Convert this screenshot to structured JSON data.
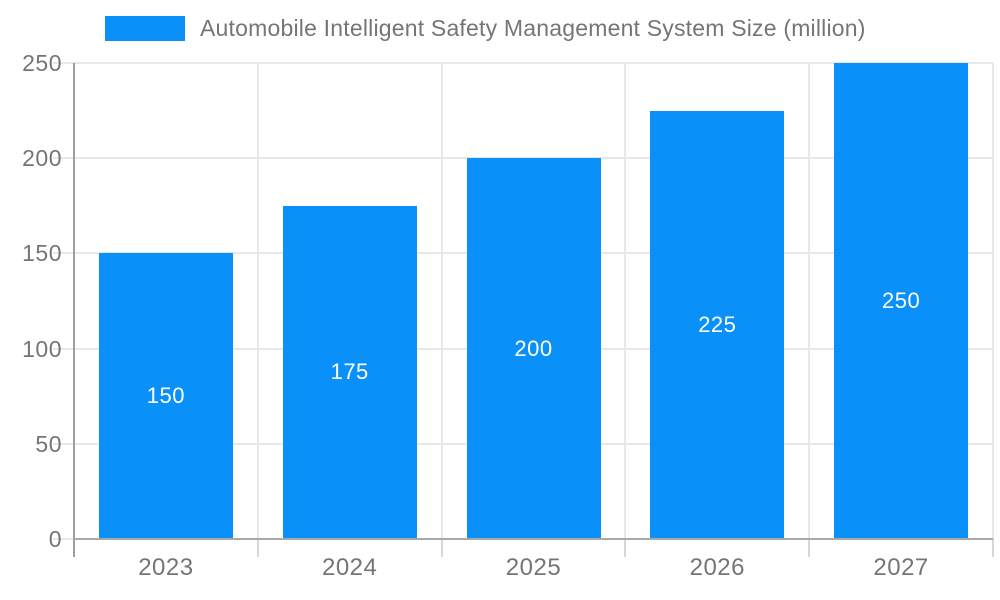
{
  "legend": {
    "label": "Automobile Intelligent Safety Management System Size (million)"
  },
  "chart_data": {
    "type": "bar",
    "title": "",
    "xlabel": "",
    "ylabel": "",
    "categories": [
      "2023",
      "2024",
      "2025",
      "2026",
      "2027"
    ],
    "values": [
      150,
      175,
      200,
      225,
      250
    ],
    "series_name": "Automobile Intelligent Safety Management System Size (million)",
    "ylim": [
      0,
      250
    ],
    "yticks": [
      0,
      50,
      100,
      150,
      200,
      250
    ],
    "grid": true,
    "legend_position": "top-left",
    "bar_color": "#0a90f9",
    "data_label_color": "#ffffff",
    "axis_text_color": "#757575",
    "gridline_color": "#e8e8e8"
  }
}
